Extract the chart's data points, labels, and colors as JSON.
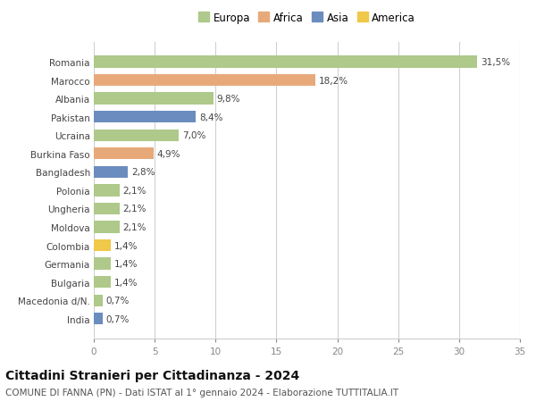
{
  "categories": [
    "Romania",
    "Marocco",
    "Albania",
    "Pakistan",
    "Ucraina",
    "Burkina Faso",
    "Bangladesh",
    "Polonia",
    "Ungheria",
    "Moldova",
    "Colombia",
    "Germania",
    "Bulgaria",
    "Macedonia d/N.",
    "India"
  ],
  "values": [
    31.5,
    18.2,
    9.8,
    8.4,
    7.0,
    4.9,
    2.8,
    2.1,
    2.1,
    2.1,
    1.4,
    1.4,
    1.4,
    0.7,
    0.7
  ],
  "labels": [
    "31,5%",
    "18,2%",
    "9,8%",
    "8,4%",
    "7,0%",
    "4,9%",
    "2,8%",
    "2,1%",
    "2,1%",
    "2,1%",
    "1,4%",
    "1,4%",
    "1,4%",
    "0,7%",
    "0,7%"
  ],
  "continents": [
    "Europa",
    "Africa",
    "Europa",
    "Asia",
    "Europa",
    "Africa",
    "Asia",
    "Europa",
    "Europa",
    "Europa",
    "America",
    "Europa",
    "Europa",
    "Europa",
    "Asia"
  ],
  "colors": {
    "Europa": "#aec98a",
    "Africa": "#e8a97a",
    "Asia": "#6b8cbf",
    "America": "#f0c84a"
  },
  "legend_order": [
    "Europa",
    "Africa",
    "Asia",
    "America"
  ],
  "xlim": [
    0,
    35
  ],
  "xticks": [
    0,
    5,
    10,
    15,
    20,
    25,
    30,
    35
  ],
  "title": "Cittadini Stranieri per Cittadinanza - 2024",
  "subtitle": "COMUNE DI FANNA (PN) - Dati ISTAT al 1° gennaio 2024 - Elaborazione TUTTITALIA.IT",
  "bg_color": "#ffffff",
  "grid_color": "#d0d0d0",
  "bar_height": 0.65,
  "label_fontsize": 7.5,
  "title_fontsize": 10,
  "subtitle_fontsize": 7.5,
  "tick_fontsize": 7.5,
  "legend_fontsize": 8.5
}
